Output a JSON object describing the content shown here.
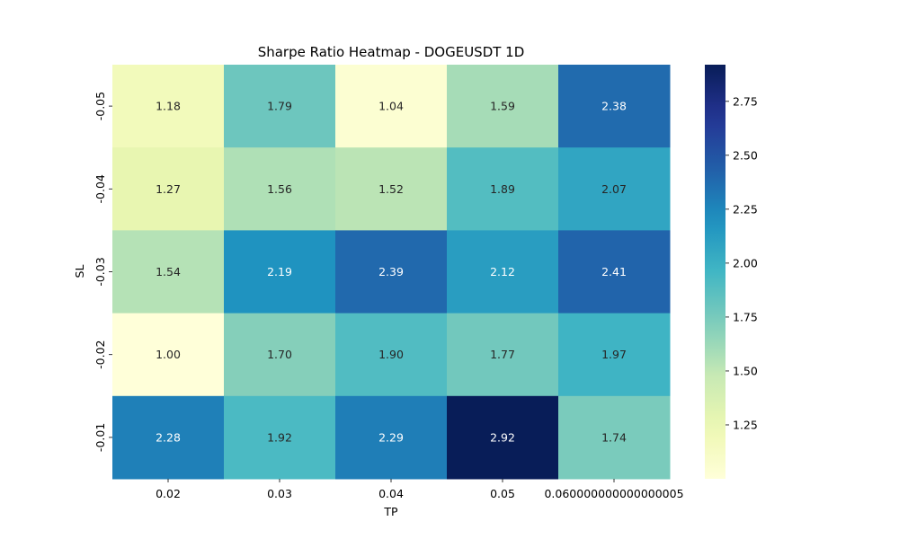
{
  "chart_data": {
    "type": "heatmap",
    "title": "Sharpe Ratio Heatmap - DOGEUSDT 1D",
    "xlabel": "TP",
    "ylabel": "SL",
    "x_categories": [
      "0.02",
      "0.03",
      "0.04",
      "0.05",
      "0.060000000000000005"
    ],
    "y_categories": [
      "-0.05",
      "-0.04",
      "-0.03",
      "-0.02",
      "-0.01"
    ],
    "values": [
      [
        1.18,
        1.79,
        1.04,
        1.59,
        2.38
      ],
      [
        1.27,
        1.56,
        1.52,
        1.89,
        2.07
      ],
      [
        1.54,
        2.19,
        2.39,
        2.12,
        2.41
      ],
      [
        1.0,
        1.7,
        1.9,
        1.77,
        1.97
      ],
      [
        2.28,
        1.92,
        2.29,
        2.92,
        1.74
      ]
    ],
    "value_labels": [
      [
        "1.18",
        "1.79",
        "1.04",
        "1.59",
        "2.38"
      ],
      [
        "1.27",
        "1.56",
        "1.52",
        "1.89",
        "2.07"
      ],
      [
        "1.54",
        "2.19",
        "2.39",
        "2.12",
        "2.41"
      ],
      [
        "1.00",
        "1.70",
        "1.90",
        "1.77",
        "1.97"
      ],
      [
        "2.28",
        "1.92",
        "2.29",
        "2.92",
        "1.74"
      ]
    ],
    "colormap": "YlGnBu",
    "vmin": 1.0,
    "vmax": 2.92,
    "colorbar_ticks": [
      1.25,
      1.5,
      1.75,
      2.0,
      2.25,
      2.5,
      2.75
    ],
    "colorbar_tick_labels": [
      "1.25",
      "1.50",
      "1.75",
      "2.00",
      "2.25",
      "2.50",
      "2.75"
    ],
    "colorbar_position": "right"
  }
}
